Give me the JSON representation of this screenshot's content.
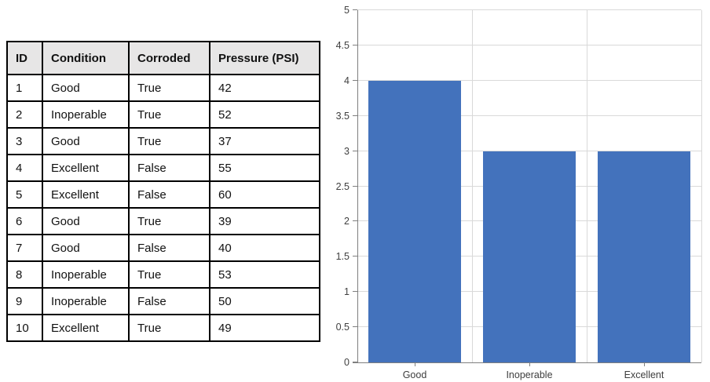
{
  "table": {
    "headers": [
      "ID",
      "Condition",
      "Corroded",
      "Pressure (PSI)"
    ],
    "rows": [
      [
        "1",
        "Good",
        "True",
        "42"
      ],
      [
        "2",
        "Inoperable",
        "True",
        "52"
      ],
      [
        "3",
        "Good",
        "True",
        "37"
      ],
      [
        "4",
        "Excellent",
        "False",
        "55"
      ],
      [
        "5",
        "Excellent",
        "False",
        "60"
      ],
      [
        "6",
        "Good",
        "True",
        "39"
      ],
      [
        "7",
        "Good",
        "False",
        "40"
      ],
      [
        "8",
        "Inoperable",
        "True",
        "53"
      ],
      [
        "9",
        "Inoperable",
        "False",
        "50"
      ],
      [
        "10",
        "Excellent",
        "True",
        "49"
      ]
    ]
  },
  "chart_data": {
    "type": "bar",
    "categories": [
      "Good",
      "Inoperable",
      "Excellent"
    ],
    "values": [
      4,
      3,
      3
    ],
    "title": "",
    "xlabel": "",
    "ylabel": "",
    "ylim": [
      0,
      5
    ],
    "ytick_step": 0.5,
    "grid": true,
    "legend_position": "none",
    "bar_width_fraction": 0.81,
    "colors": {
      "bar": "#4372BC",
      "gridline": "#D9D9D9",
      "axis": "#7F7F7F",
      "tick_label": "#404040"
    }
  },
  "colors": {
    "table_header_bg": "#E7E6E6",
    "table_border": "#000000",
    "page_bg": "#FFFFFF"
  }
}
